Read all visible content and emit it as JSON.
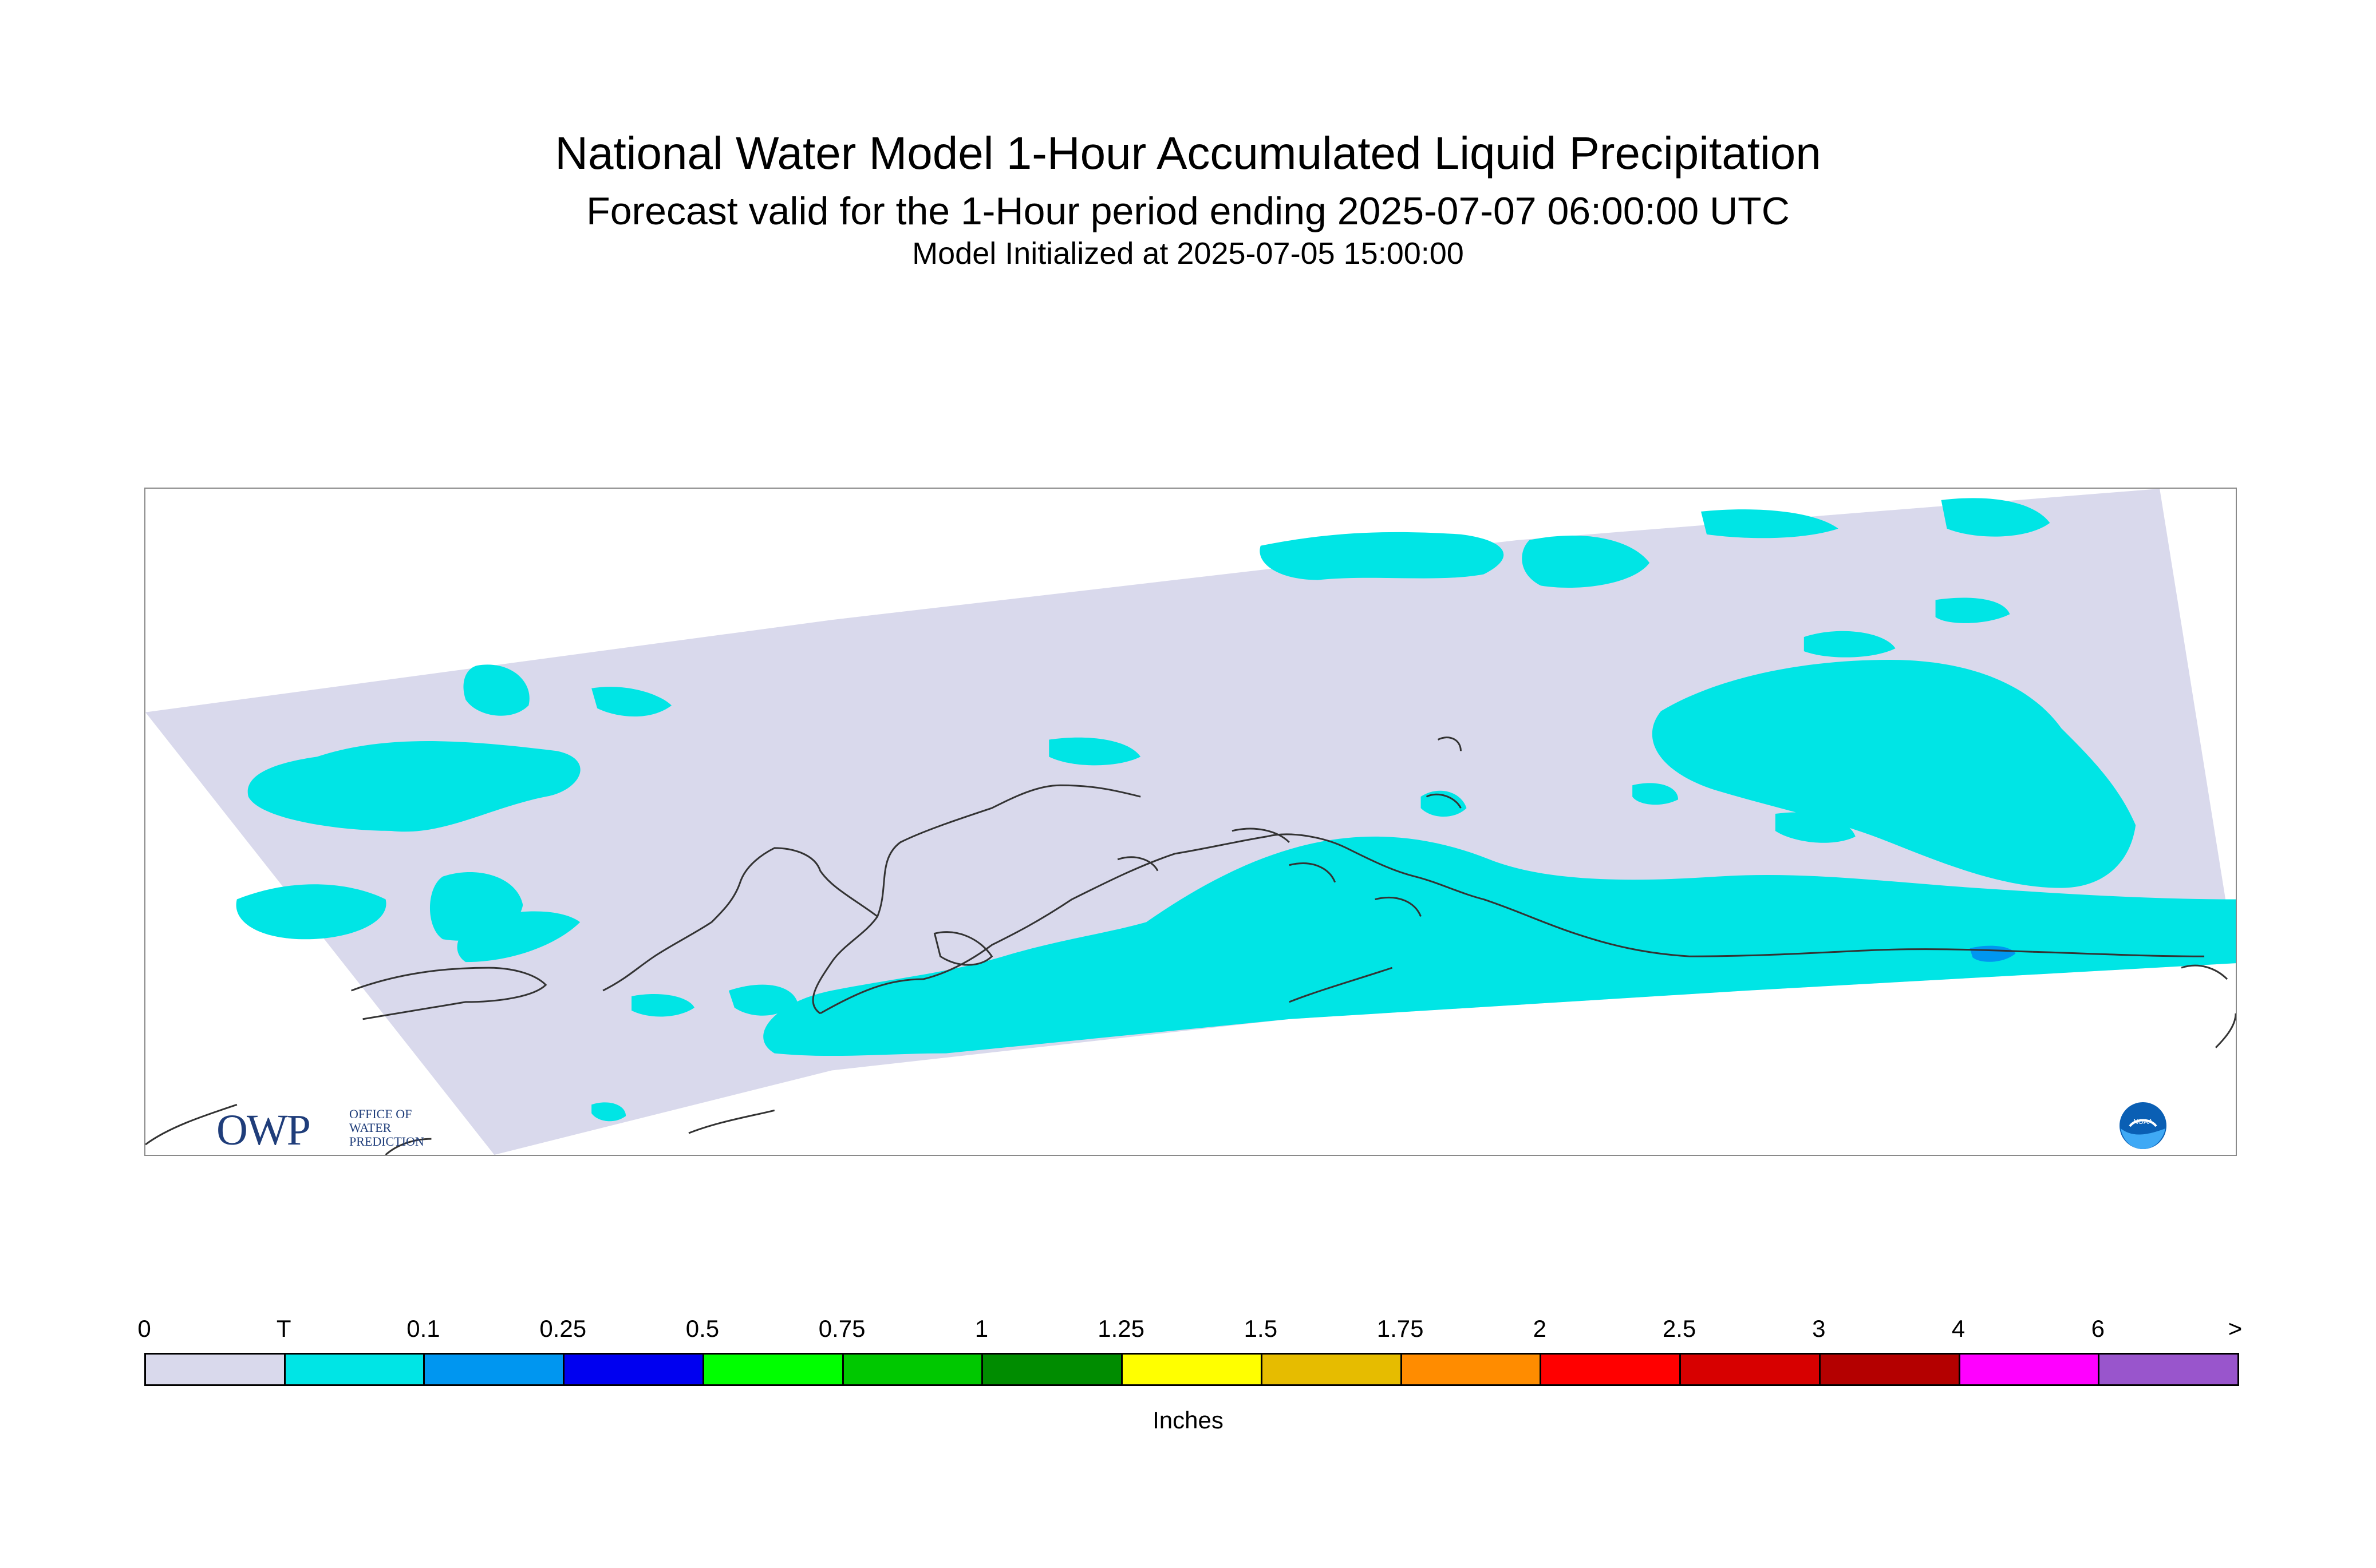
{
  "title": "National Water Model 1-Hour Accumulated Liquid Precipitation",
  "subtitle": "Forecast valid for the 1-Hour period ending 2025-07-07 06:00:00 UTC",
  "init_line": "Model Initialized at 2025-07-05 15:00:00",
  "logo_owp": {
    "mark": "OWP",
    "line1": "OFFICE OF",
    "line2": "WATER",
    "line3": "PREDICTION"
  },
  "logo_noaa": {
    "text": "NOAA"
  },
  "colors": {
    "domain_zero": "#d9d9ec",
    "trace": "#00e5e5",
    "coast": "#333333",
    "frame": "#8a8a8a"
  },
  "legend": {
    "units": "Inches",
    "ticks": [
      "0",
      "T",
      "0.1",
      "0.25",
      "0.5",
      "0.75",
      "1",
      "1.25",
      "1.5",
      "1.75",
      "2",
      "2.5",
      "3",
      "4",
      "6",
      ">"
    ],
    "colors": [
      "#d9d9ec",
      "#00e5e5",
      "#0096f0",
      "#0000f0",
      "#00ff00",
      "#00c800",
      "#008c00",
      "#ffff00",
      "#e6bc00",
      "#ff8c00",
      "#ff0000",
      "#d70000",
      "#b40000",
      "#ff00ff",
      "#9955cc"
    ]
  }
}
